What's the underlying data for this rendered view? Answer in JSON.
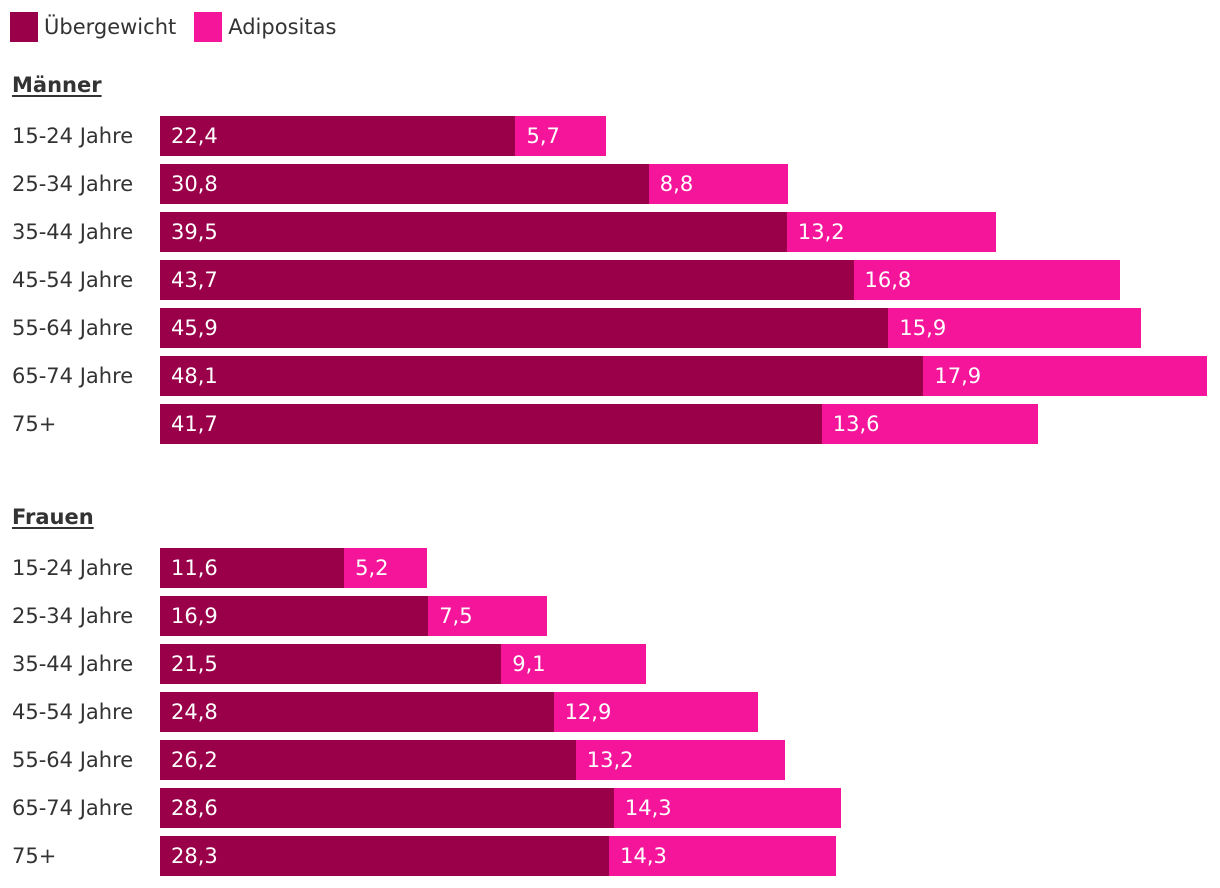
{
  "legend": {
    "ubergewicht_label": "Übergewicht",
    "adipositas_label": "Adipositas"
  },
  "colors": {
    "ubergewicht": "#990049",
    "adipositas": "#f5159b"
  },
  "chart_data": {
    "type": "bar",
    "orientation": "horizontal",
    "stacked": true,
    "legend_position": "top-left",
    "series_names": [
      "Übergewicht",
      "Adipositas"
    ],
    "groups": [
      {
        "title": "Männer",
        "categories": [
          "15-24 Jahre",
          "25-34 Jahre",
          "35-44 Jahre",
          "45-54 Jahre",
          "55-64 Jahre",
          "65-74 Jahre",
          "75+"
        ],
        "ubergewicht": [
          22.4,
          30.8,
          39.5,
          43.7,
          45.9,
          48.1,
          41.7
        ],
        "adipositas": [
          5.7,
          8.8,
          13.2,
          16.8,
          15.9,
          17.9,
          13.6
        ],
        "ubergewicht_labels": [
          "22,4",
          "30,8",
          "39,5",
          "43,7",
          "45,9",
          "48,1",
          "41,7"
        ],
        "adipositas_labels": [
          "5,7",
          "8,8",
          "13,2",
          "16,8",
          "15,9",
          "17,9",
          "13,6"
        ]
      },
      {
        "title": "Frauen",
        "categories": [
          "15-24 Jahre",
          "25-34 Jahre",
          "35-44 Jahre",
          "45-54 Jahre",
          "55-64 Jahre",
          "65-74 Jahre",
          "75+"
        ],
        "ubergewicht": [
          11.6,
          16.9,
          21.5,
          24.8,
          26.2,
          28.6,
          28.3
        ],
        "adipositas": [
          5.2,
          7.5,
          9.1,
          12.9,
          13.2,
          14.3,
          14.3
        ],
        "ubergewicht_labels": [
          "11,6",
          "16,9",
          "21,5",
          "24,8",
          "26,2",
          "28,6",
          "28,3"
        ],
        "adipositas_labels": [
          "5,2",
          "7,5",
          "9,1",
          "12,9",
          "13,2",
          "14,3",
          "14,3"
        ]
      }
    ]
  }
}
